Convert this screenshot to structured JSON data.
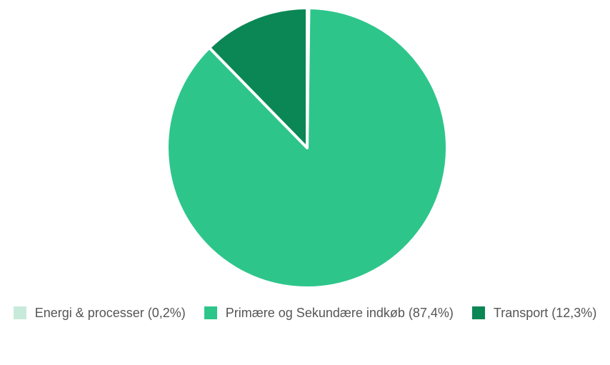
{
  "chart_data": {
    "type": "pie",
    "categories": [
      "Energi & processer (0,2%)",
      "Primære og Sekundære indkøb (87,4%)",
      "Transport (12,3%)"
    ],
    "values": [
      0.2,
      87.4,
      12.3
    ],
    "colors": [
      "#c8eadb",
      "#2ec58b",
      "#0a8754"
    ],
    "legend": "bottom"
  }
}
